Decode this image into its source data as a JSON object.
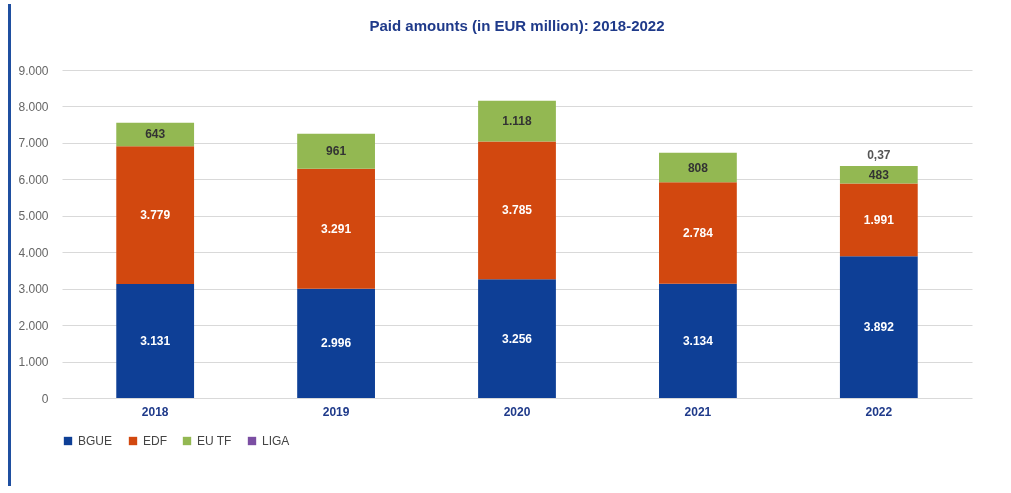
{
  "chart_data": {
    "type": "bar",
    "title": "Paid amounts (in EUR million): 2018-2022",
    "stacked": true,
    "categories": [
      "2018",
      "2019",
      "2020",
      "2021",
      "2022"
    ],
    "series": [
      {
        "name": "BGUE",
        "color": "#0e3f96",
        "values": [
          3131,
          2996,
          3256,
          3134,
          3892
        ],
        "value_labels": [
          "3.131",
          "2.996",
          "3.256",
          "3.134",
          "3.892"
        ]
      },
      {
        "name": "EDF",
        "color": "#d2480f",
        "values": [
          3779,
          3291,
          3785,
          2784,
          1991
        ],
        "value_labels": [
          "3.779",
          "3.291",
          "3.785",
          "2.784",
          "1.991"
        ]
      },
      {
        "name": "EU TF",
        "color": "#93b852",
        "values": [
          643,
          961,
          1118,
          808,
          483
        ],
        "value_labels": [
          "643",
          "961",
          "1.118",
          "808",
          "483"
        ]
      },
      {
        "name": "LIGA",
        "color": "#7b4ea3",
        "values": [
          null,
          null,
          null,
          null,
          0.37
        ],
        "value_labels": [
          null,
          null,
          null,
          null,
          "0,37"
        ]
      }
    ],
    "ylim": [
      0,
      9000
    ],
    "yticks": [
      {
        "value": 0,
        "label": "0"
      },
      {
        "value": 1000,
        "label": "1.000"
      },
      {
        "value": 2000,
        "label": "2.000"
      },
      {
        "value": 3000,
        "label": "3.000"
      },
      {
        "value": 4000,
        "label": "4.000"
      },
      {
        "value": 5000,
        "label": "5.000"
      },
      {
        "value": 6000,
        "label": "6.000"
      },
      {
        "value": 7000,
        "label": "7.000"
      },
      {
        "value": 8000,
        "label": "8.000"
      },
      {
        "value": 9000,
        "label": "9.000"
      }
    ],
    "grid": "y",
    "legend": "bottom"
  }
}
